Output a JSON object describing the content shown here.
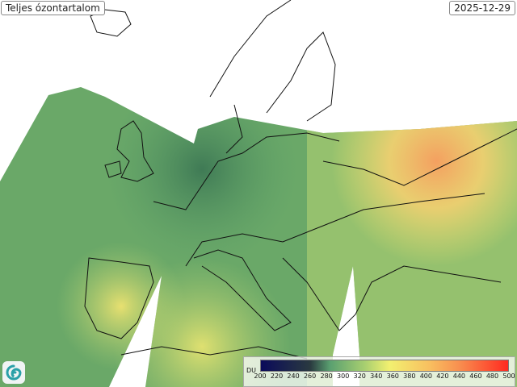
{
  "title": "Teljes ózontartalom",
  "date": "2025-12-29",
  "legend": {
    "unit": "DU",
    "ticks": [
      "200",
      "220",
      "240",
      "260",
      "280",
      "300",
      "320",
      "340",
      "360",
      "380",
      "400",
      "420",
      "440",
      "460",
      "480",
      "500"
    ],
    "colors": [
      "#0a0a5a",
      "#5aa070",
      "#f2f070",
      "#f8c060",
      "#ff2a20"
    ]
  },
  "logo": {
    "icon": "swirl-logo-icon"
  }
}
